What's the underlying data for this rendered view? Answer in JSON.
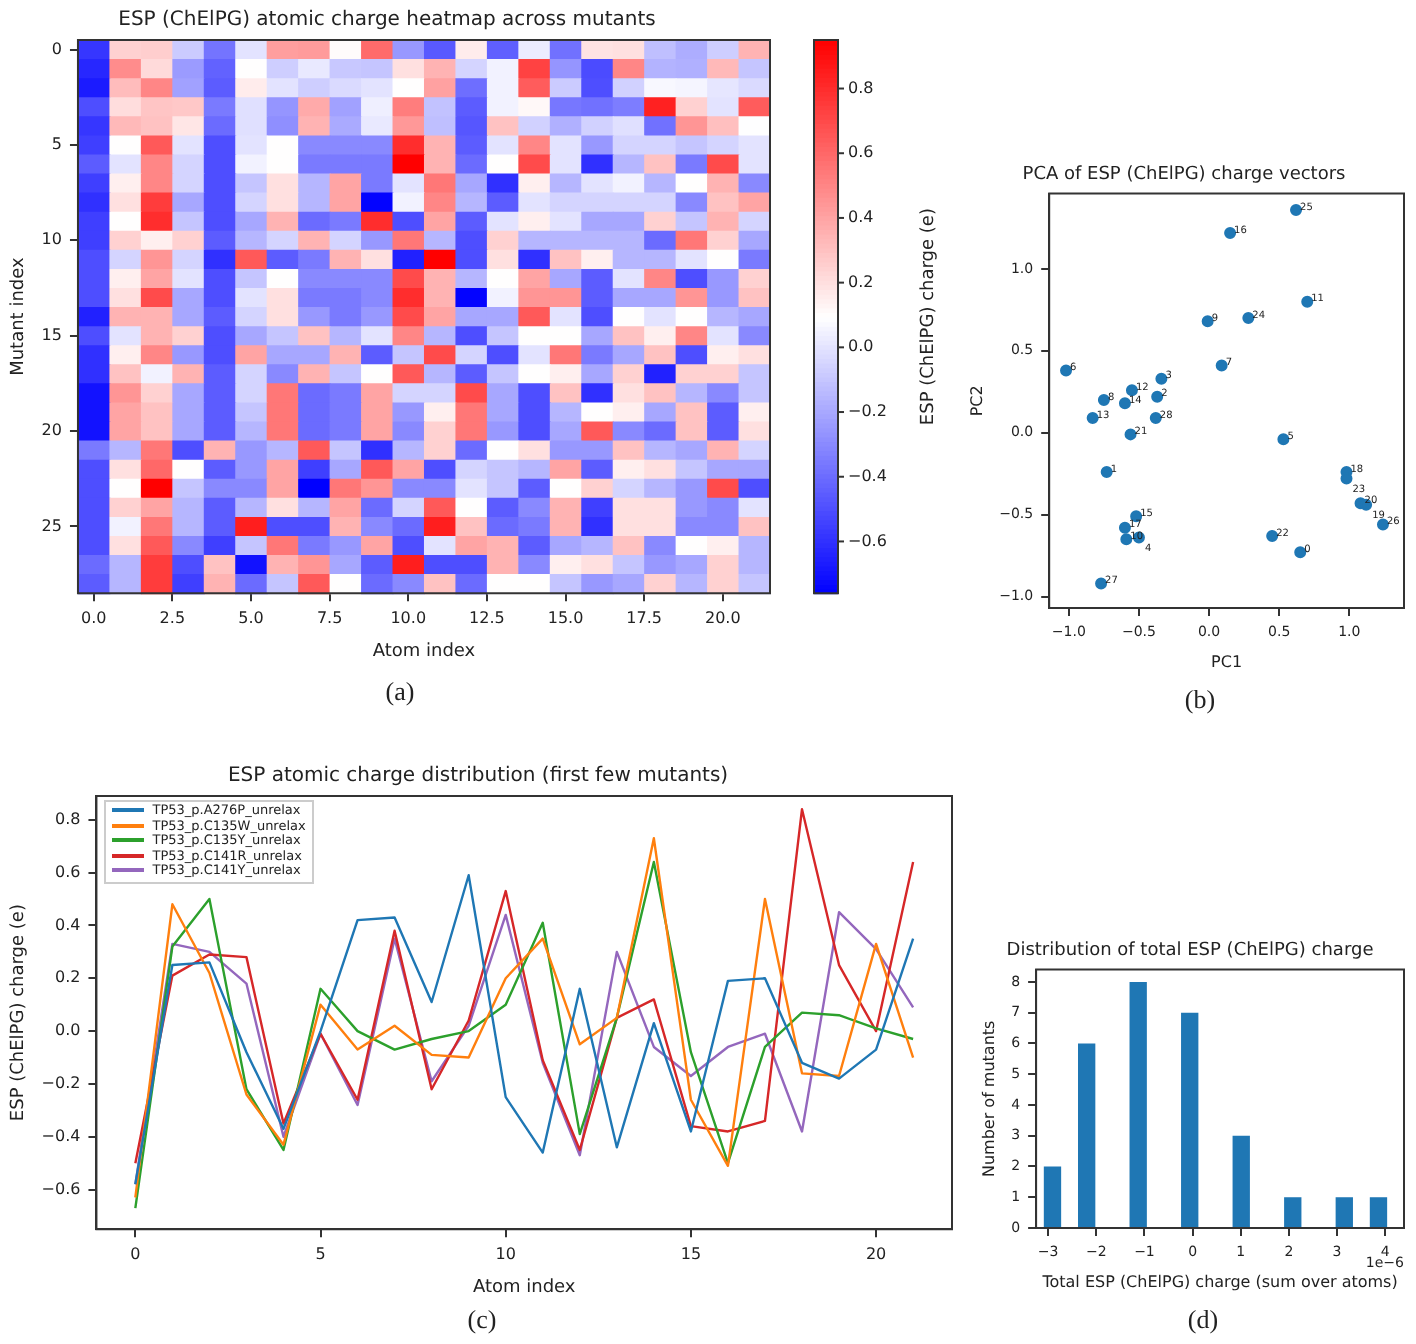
{
  "chart_data": [
    {
      "type": "heatmap",
      "title": "ESP (ChElPG) atomic charge heatmap across mutants",
      "xlabel": "Atom index",
      "ylabel": "Mutant index",
      "clabel": "ESP (ChElPG) charge (e)",
      "x": [
        0,
        1,
        2,
        3,
        4,
        5,
        6,
        7,
        8,
        9,
        10,
        11,
        12,
        13,
        14,
        15,
        16,
        17,
        18,
        19,
        20,
        21
      ],
      "xlim": [
        -0.5,
        21.5
      ],
      "xticks": [
        {
          "value": 0,
          "label": "0.0"
        },
        {
          "value": 2.5,
          "label": "2.5"
        },
        {
          "value": 5,
          "label": "5.0"
        },
        {
          "value": 7.5,
          "label": "7.5"
        },
        {
          "value": 10,
          "label": "10.0"
        },
        {
          "value": 12.5,
          "label": "12.5"
        },
        {
          "value": 15,
          "label": "15.0"
        },
        {
          "value": 17.5,
          "label": "17.5"
        },
        {
          "value": 20,
          "label": "20.0"
        }
      ],
      "ylim": [
        28.5,
        -0.5
      ],
      "yticks": [
        0,
        5,
        10,
        15,
        20,
        25
      ],
      "clim": [
        -0.76,
        0.95
      ],
      "cticks": [
        {
          "value": -0.6,
          "label": "−0.6"
        },
        {
          "value": -0.4,
          "label": "−0.4"
        },
        {
          "value": -0.2,
          "label": "−0.2"
        },
        {
          "value": 0,
          "label": "0.0"
        },
        {
          "value": 0.2,
          "label": "0.2"
        },
        {
          "value": 0.4,
          "label": "0.4"
        },
        {
          "value": 0.6,
          "label": "0.6"
        },
        {
          "value": 0.8,
          "label": "0.8"
        }
      ],
      "cells": [
        [
          -0.58,
          0.25,
          0.26,
          -0.08,
          -0.37,
          0.0,
          0.42,
          0.43,
          0.11,
          0.59,
          -0.25,
          -0.46,
          0.16,
          -0.44,
          0.03,
          -0.38,
          0.19,
          0.2,
          -0.12,
          -0.18,
          -0.07,
          0.35
        ],
        [
          -0.63,
          0.48,
          0.22,
          -0.24,
          -0.43,
          0.1,
          -0.07,
          0.02,
          -0.09,
          -0.1,
          0.2,
          0.35,
          -0.05,
          0.05,
          0.73,
          -0.26,
          -0.51,
          0.5,
          -0.16,
          -0.17,
          0.33,
          -0.1
        ],
        [
          -0.67,
          0.32,
          0.5,
          -0.22,
          -0.45,
          0.16,
          0.0,
          -0.07,
          -0.03,
          0.0,
          0.1,
          0.41,
          -0.39,
          0.05,
          0.64,
          -0.08,
          -0.5,
          -0.06,
          0.07,
          0.06,
          0.01,
          -0.03
        ],
        [
          -0.5,
          0.21,
          0.29,
          0.28,
          -0.35,
          -0.01,
          -0.26,
          0.38,
          -0.22,
          0.04,
          0.53,
          -0.11,
          -0.45,
          0.05,
          0.12,
          -0.36,
          -0.38,
          -0.34,
          0.84,
          0.25,
          0.0,
          0.64
        ],
        [
          -0.58,
          0.33,
          0.3,
          0.18,
          -0.4,
          -0.01,
          -0.28,
          0.35,
          -0.19,
          0.02,
          0.44,
          -0.12,
          -0.47,
          0.3,
          -0.06,
          -0.17,
          -0.06,
          -0.01,
          -0.38,
          0.45,
          0.31,
          0.09
        ],
        [
          -0.55,
          0.1,
          0.65,
          0.0,
          -0.5,
          0.0,
          0.1,
          -0.3,
          -0.3,
          -0.3,
          0.8,
          0.35,
          -0.45,
          0.0,
          0.5,
          0.0,
          -0.25,
          -0.05,
          -0.05,
          -0.1,
          -0.05,
          0.0
        ],
        [
          -0.45,
          0.0,
          0.5,
          -0.05,
          -0.5,
          0.05,
          0.1,
          -0.35,
          -0.35,
          -0.35,
          0.95,
          0.35,
          -0.4,
          0.1,
          0.7,
          0.0,
          -0.6,
          -0.15,
          0.3,
          -0.35,
          0.7,
          0.0
        ],
        [
          -0.55,
          0.15,
          0.5,
          -0.05,
          -0.5,
          -0.1,
          0.2,
          -0.15,
          0.4,
          -0.35,
          0.0,
          0.55,
          -0.2,
          -0.6,
          0.15,
          -0.15,
          0.0,
          0.05,
          -0.15,
          0.1,
          0.35,
          -0.3
        ],
        [
          -0.6,
          0.2,
          0.75,
          -0.2,
          -0.5,
          -0.05,
          0.2,
          -0.15,
          0.4,
          -0.75,
          0.05,
          0.5,
          -0.15,
          -0.45,
          0.0,
          -0.05,
          -0.05,
          -0.05,
          -0.05,
          -0.3,
          0.3,
          0.4
        ],
        [
          -0.55,
          0.1,
          0.8,
          -0.1,
          -0.5,
          -0.2,
          0.35,
          -0.4,
          -0.35,
          0.8,
          -0.5,
          0.4,
          -0.45,
          0.0,
          0.15,
          0.0,
          -0.2,
          -0.2,
          0.25,
          -0.1,
          0.35,
          -0.05
        ],
        [
          -0.55,
          0.25,
          0.15,
          0.25,
          -0.45,
          -0.15,
          -0.05,
          0.35,
          -0.05,
          -0.25,
          0.55,
          -0.15,
          -0.5,
          0.25,
          -0.15,
          -0.15,
          -0.15,
          -0.15,
          -0.4,
          0.55,
          0.25,
          -0.2
        ],
        [
          -0.5,
          -0.05,
          0.45,
          -0.05,
          -0.6,
          0.65,
          -0.45,
          -0.35,
          0.35,
          0.2,
          -0.65,
          0.95,
          -0.5,
          0.2,
          -0.6,
          0.3,
          0.15,
          -0.15,
          -0.15,
          0.0,
          0.1,
          -0.35
        ],
        [
          -0.5,
          0.15,
          0.4,
          0.0,
          -0.5,
          -0.1,
          0.1,
          -0.3,
          -0.3,
          -0.3,
          0.7,
          0.35,
          -0.15,
          0.1,
          0.4,
          -0.2,
          -0.45,
          0.0,
          0.5,
          -0.5,
          -0.25,
          0.25
        ],
        [
          -0.5,
          0.2,
          0.7,
          -0.2,
          -0.5,
          0.0,
          0.2,
          -0.35,
          -0.35,
          -0.3,
          0.8,
          0.35,
          -0.75,
          0.05,
          0.45,
          0.45,
          -0.45,
          -0.2,
          -0.2,
          0.45,
          -0.25,
          0.3
        ],
        [
          -0.65,
          0.35,
          0.35,
          -0.2,
          -0.45,
          -0.05,
          0.2,
          -0.25,
          -0.35,
          -0.25,
          0.7,
          0.4,
          -0.2,
          -0.2,
          0.65,
          0.0,
          -0.5,
          0.1,
          0.0,
          0.1,
          -0.15,
          -0.2
        ],
        [
          -0.5,
          0.0,
          0.35,
          0.25,
          -0.5,
          -0.2,
          -0.1,
          0.3,
          -0.15,
          0.0,
          0.5,
          -0.15,
          -0.5,
          -0.1,
          0.1,
          0.1,
          -0.2,
          0.3,
          0.15,
          0.5,
          0.0,
          -0.3
        ],
        [
          -0.6,
          0.15,
          0.5,
          -0.25,
          -0.5,
          0.4,
          -0.2,
          -0.2,
          0.35,
          -0.45,
          -0.1,
          0.7,
          -0.05,
          -0.5,
          0.0,
          0.55,
          -0.35,
          -0.2,
          0.3,
          -0.5,
          0.15,
          0.2
        ],
        [
          -0.6,
          0.3,
          0.05,
          0.35,
          -0.45,
          -0.05,
          -0.3,
          0.35,
          -0.1,
          0.1,
          0.65,
          -0.15,
          -0.45,
          -0.1,
          0.1,
          0.15,
          -0.2,
          0.25,
          -0.65,
          0.25,
          0.25,
          -0.1
        ],
        [
          -0.7,
          0.45,
          0.25,
          -0.2,
          -0.45,
          -0.05,
          0.55,
          -0.4,
          -0.35,
          0.4,
          -0.05,
          -0.05,
          0.7,
          -0.2,
          -0.5,
          0.3,
          -0.6,
          0.2,
          0.3,
          -0.15,
          -0.3,
          -0.1
        ],
        [
          -0.7,
          0.4,
          0.3,
          -0.2,
          -0.45,
          -0.1,
          0.55,
          -0.4,
          -0.35,
          0.4,
          -0.25,
          0.15,
          0.55,
          -0.2,
          -0.5,
          -0.15,
          0.1,
          0.15,
          -0.2,
          0.3,
          -0.45,
          0.15
        ],
        [
          -0.7,
          0.4,
          0.3,
          -0.2,
          -0.45,
          -0.15,
          0.55,
          -0.4,
          -0.35,
          0.4,
          -0.3,
          0.25,
          0.55,
          -0.25,
          -0.5,
          -0.2,
          0.65,
          -0.3,
          -0.4,
          0.3,
          -0.45,
          0.2
        ],
        [
          -0.35,
          -0.15,
          0.55,
          -0.5,
          0.35,
          -0.25,
          -0.15,
          0.65,
          -0.1,
          -0.6,
          -0.15,
          0.25,
          -0.4,
          0.1,
          0.2,
          -0.25,
          -0.25,
          0.3,
          -0.15,
          -0.2,
          0.35,
          -0.05
        ],
        [
          -0.5,
          0.2,
          0.6,
          0.1,
          -0.45,
          -0.25,
          0.4,
          -0.55,
          -0.2,
          0.65,
          0.4,
          -0.5,
          -0.05,
          -0.1,
          -0.15,
          0.4,
          -0.45,
          0.15,
          0.2,
          -0.1,
          -0.2,
          -0.2
        ],
        [
          -0.5,
          0.1,
          0.95,
          -0.1,
          -0.3,
          -0.3,
          0.4,
          -0.76,
          0.55,
          0.45,
          -0.3,
          -0.3,
          0.0,
          -0.1,
          -0.45,
          0.1,
          0.25,
          -0.05,
          -0.15,
          -0.25,
          0.7,
          -0.5
        ],
        [
          -0.5,
          0.25,
          0.4,
          -0.15,
          -0.45,
          -0.15,
          0.2,
          -0.15,
          0.4,
          -0.4,
          -0.05,
          0.65,
          0.1,
          -0.45,
          -0.3,
          0.35,
          -0.55,
          0.2,
          0.2,
          -0.25,
          -0.3,
          0.0
        ],
        [
          -0.5,
          0.05,
          0.55,
          -0.15,
          -0.45,
          0.85,
          -0.5,
          -0.5,
          0.35,
          -0.3,
          -0.4,
          0.85,
          0.3,
          -0.4,
          -0.35,
          0.35,
          -0.6,
          0.2,
          0.2,
          -0.3,
          -0.3,
          0.3
        ],
        [
          -0.5,
          0.2,
          0.65,
          -0.3,
          -0.55,
          -0.1,
          0.55,
          -0.35,
          -0.25,
          0.4,
          -0.5,
          0.0,
          0.4,
          0.35,
          -0.45,
          -0.2,
          -0.15,
          0.3,
          -0.3,
          0.1,
          0.15,
          -0.15
        ],
        [
          -0.4,
          -0.15,
          0.75,
          -0.5,
          0.3,
          -0.7,
          0.35,
          0.45,
          -0.2,
          -0.45,
          0.85,
          -0.5,
          -0.5,
          0.35,
          -0.3,
          0.15,
          0.2,
          -0.1,
          -0.25,
          -0.2,
          0.25,
          -0.15
        ],
        [
          -0.45,
          -0.15,
          0.75,
          -0.55,
          0.35,
          -0.4,
          -0.1,
          0.65,
          0.1,
          -0.4,
          -0.3,
          0.3,
          -0.4,
          0.1,
          0.1,
          -0.1,
          -0.25,
          -0.2,
          0.25,
          -0.15,
          0.25,
          -0.1
        ]
      ],
      "annotations": [
        "(a)"
      ]
    },
    {
      "type": "scatter",
      "title": "PCA of ESP (ChElPG) charge vectors",
      "xlabel": "PC1",
      "ylabel": "PC2",
      "color": "#1f77b4",
      "marker": "circle",
      "x": [
        -1.02,
        -0.75,
        -0.83,
        -0.6,
        -0.55,
        -0.56,
        -0.34,
        -0.37,
        -0.38,
        -0.73,
        -0.52,
        -0.6,
        -0.59,
        -0.5,
        -0.77,
        -0.01,
        0.09,
        0.28,
        0.15,
        0.62,
        0.7,
        0.53,
        0.45,
        0.65,
        0.98,
        0.98,
        1.08,
        1.12,
        1.24
      ],
      "values": [
        0.38,
        0.2,
        0.09,
        0.18,
        0.26,
        -0.01,
        0.33,
        0.22,
        0.09,
        -0.24,
        -0.51,
        -0.58,
        -0.65,
        -0.64,
        -0.92,
        0.68,
        0.41,
        0.7,
        1.22,
        1.36,
        0.8,
        -0.04,
        -0.63,
        -0.73,
        -0.24,
        -0.28,
        -0.43,
        -0.44,
        -0.56
      ],
      "xlim": [
        -1.14,
        1.39
      ],
      "xticks": [
        {
          "value": -1,
          "label": "−1.0"
        },
        {
          "value": -0.5,
          "label": "−0.5"
        },
        {
          "value": 0,
          "label": "0.0"
        },
        {
          "value": 0.5,
          "label": "0.5"
        },
        {
          "value": 1,
          "label": "1.0"
        }
      ],
      "ylim": [
        -1.07,
        1.46
      ],
      "yticks": [
        {
          "value": -1,
          "label": "−1.0"
        },
        {
          "value": -0.5,
          "label": "−0.5"
        },
        {
          "value": 0,
          "label": "0.0"
        },
        {
          "value": 0.5,
          "label": "0.5"
        },
        {
          "value": 1,
          "label": "1.0"
        }
      ],
      "annotations": [
        {
          "text": "6",
          "x": -1.02,
          "y": 0.38
        },
        {
          "text": "8",
          "x": -0.75,
          "y": 0.2
        },
        {
          "text": "13",
          "x": -0.83,
          "y": 0.09
        },
        {
          "text": "14",
          "x": -0.6,
          "y": 0.18
        },
        {
          "text": "12",
          "x": -0.55,
          "y": 0.26
        },
        {
          "text": "21",
          "x": -0.56,
          "y": -0.01
        },
        {
          "text": "3",
          "x": -0.34,
          "y": 0.33
        },
        {
          "text": "2",
          "x": -0.37,
          "y": 0.22
        },
        {
          "text": "28",
          "x": -0.38,
          "y": 0.09
        },
        {
          "text": "1",
          "x": -0.73,
          "y": -0.24
        },
        {
          "text": "15",
          "x": -0.52,
          "y": -0.51
        },
        {
          "text": "17",
          "x": -0.6,
          "y": -0.58
        },
        {
          "text": "10",
          "x": -0.59,
          "y": -0.65
        },
        {
          "text": "4",
          "x": -0.5,
          "y": -0.64
        },
        {
          "text": "27",
          "x": -0.77,
          "y": -0.92
        },
        {
          "text": "9",
          "x": -0.01,
          "y": 0.68
        },
        {
          "text": "7",
          "x": 0.09,
          "y": 0.41
        },
        {
          "text": "24",
          "x": 0.28,
          "y": 0.7
        },
        {
          "text": "16",
          "x": 0.15,
          "y": 1.22
        },
        {
          "text": "25",
          "x": 0.62,
          "y": 1.36
        },
        {
          "text": "11",
          "x": 0.7,
          "y": 0.8
        },
        {
          "text": "5",
          "x": 0.53,
          "y": -0.04
        },
        {
          "text": "22",
          "x": 0.45,
          "y": -0.63
        },
        {
          "text": "0",
          "x": 0.65,
          "y": -0.73
        },
        {
          "text": "18",
          "x": 0.98,
          "y": -0.24
        },
        {
          "text": "23",
          "x": 0.98,
          "y": -0.28
        },
        {
          "text": "20",
          "x": 1.08,
          "y": -0.43
        },
        {
          "text": "19",
          "x": 1.12,
          "y": -0.44
        },
        {
          "text": "26",
          "x": 1.24,
          "y": -0.56
        },
        "(b)"
      ]
    },
    {
      "type": "line",
      "title": "ESP atomic charge distribution (first few mutants)",
      "xlabel": "Atom index",
      "ylabel": "ESP (ChElPG) charge (e)",
      "x": [
        0,
        1,
        2,
        3,
        4,
        5,
        6,
        7,
        8,
        9,
        10,
        11,
        12,
        13,
        14,
        15,
        16,
        17,
        18,
        19,
        20,
        21
      ],
      "xlim": [
        -1.05,
        22.05
      ],
      "xticks": [
        0,
        5,
        10,
        15,
        20
      ],
      "ylim": [
        -0.75,
        0.89
      ],
      "yticks": [
        {
          "value": -0.6,
          "label": "−0.6"
        },
        {
          "value": -0.4,
          "label": "−0.4"
        },
        {
          "value": -0.2,
          "label": "−0.2"
        },
        {
          "value": 0,
          "label": "0.0"
        },
        {
          "value": 0.2,
          "label": "0.2"
        },
        {
          "value": 0.4,
          "label": "0.4"
        },
        {
          "value": 0.6,
          "label": "0.6"
        },
        {
          "value": 0.8,
          "label": "0.8"
        }
      ],
      "legend": "top left",
      "series": [
        {
          "name": "TP53_p.A276P_unrelax",
          "color": "#1f77b4",
          "values": [
            -0.58,
            0.25,
            0.26,
            -0.08,
            -0.37,
            0.0,
            0.42,
            0.43,
            0.11,
            0.59,
            -0.25,
            -0.46,
            0.16,
            -0.44,
            0.03,
            -0.38,
            0.19,
            0.2,
            -0.12,
            -0.18,
            -0.07,
            0.35
          ]
        },
        {
          "name": "TP53_p.C135W_unrelax",
          "color": "#ff7f0e",
          "values": [
            -0.63,
            0.48,
            0.22,
            -0.24,
            -0.43,
            0.1,
            -0.07,
            0.02,
            -0.09,
            -0.1,
            0.2,
            0.35,
            -0.05,
            0.05,
            0.73,
            -0.26,
            -0.51,
            0.5,
            -0.16,
            -0.17,
            0.33,
            -0.1
          ]
        },
        {
          "name": "TP53_p.C135Y_unrelax",
          "color": "#2ca02c",
          "values": [
            -0.67,
            0.32,
            0.5,
            -0.22,
            -0.45,
            0.16,
            0.0,
            -0.07,
            -0.03,
            0.0,
            0.1,
            0.41,
            -0.39,
            0.05,
            0.64,
            -0.08,
            -0.5,
            -0.06,
            0.07,
            0.06,
            0.01,
            -0.03
          ]
        },
        {
          "name": "TP53_p.C141R_unrelax",
          "color": "#d62728",
          "values": [
            -0.5,
            0.21,
            0.29,
            0.28,
            -0.35,
            -0.01,
            -0.26,
            0.38,
            -0.22,
            0.04,
            0.53,
            -0.11,
            -0.45,
            0.05,
            0.12,
            -0.36,
            -0.38,
            -0.34,
            0.84,
            0.25,
            0.0,
            0.64
          ]
        },
        {
          "name": "TP53_p.C141Y_unrelax",
          "color": "#9467bd",
          "values": [
            -0.58,
            0.33,
            0.3,
            0.18,
            -0.4,
            -0.01,
            -0.28,
            0.35,
            -0.19,
            0.02,
            0.44,
            -0.12,
            -0.47,
            0.3,
            -0.06,
            -0.17,
            -0.06,
            -0.01,
            -0.38,
            0.45,
            0.31,
            0.09
          ]
        }
      ],
      "annotations": [
        "(c)"
      ]
    },
    {
      "type": "histogram",
      "title": "Distribution of total ESP (ChElPG) charge",
      "xlabel": "Total ESP (ChElPG) charge (sum over atoms)",
      "ylabel": "Number of mutants",
      "color": "#1f77b4",
      "bins": [
        -3.09,
        -2.73,
        -2.38,
        -2.02,
        -1.66,
        -1.31,
        -0.95,
        -0.6,
        -0.24,
        0.12,
        0.48,
        0.83,
        1.19,
        1.54,
        1.9,
        2.26,
        2.61,
        2.97,
        3.33,
        3.68,
        4.04
      ],
      "values": [
        2,
        0,
        6,
        0,
        0,
        8,
        0,
        0,
        7,
        0,
        0,
        3,
        0,
        0,
        1,
        0,
        0,
        1,
        0,
        1
      ],
      "xlim": [
        -3.25,
        4.39
      ],
      "xticks": [
        {
          "value": -3,
          "label": "−3"
        },
        {
          "value": -2,
          "label": "−2"
        },
        {
          "value": -1,
          "label": "−1"
        },
        0,
        1,
        2,
        3,
        4
      ],
      "ylim": [
        0,
        8.4
      ],
      "yticks": [
        0,
        1,
        2,
        3,
        4,
        5,
        6,
        7,
        8
      ],
      "annotations": [
        "1e−6",
        "(d)"
      ]
    }
  ]
}
